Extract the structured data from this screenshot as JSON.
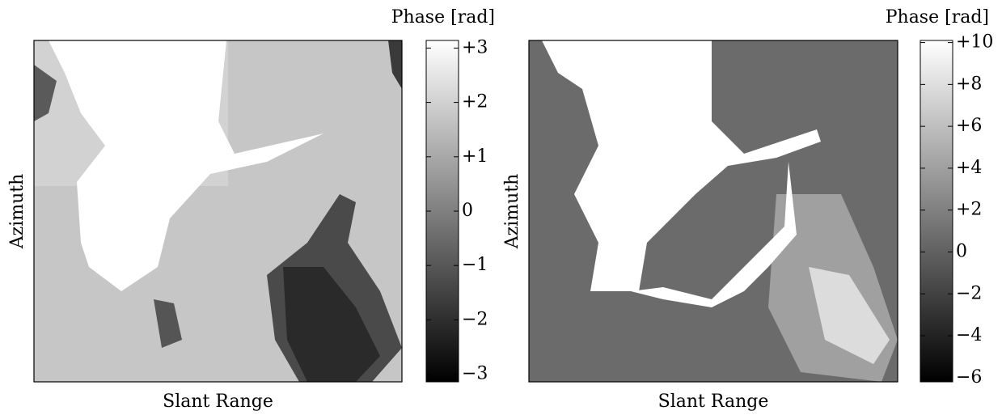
{
  "chart_data": [
    {
      "type": "image",
      "xlabel": "Slant Range",
      "ylabel": "Azimuth",
      "colorbar": {
        "label": "Phase [rad]",
        "lim": [
          -3.14,
          3.14
        ],
        "ticks": [
          {
            "value": 3,
            "label": "+3"
          },
          {
            "value": 2,
            "label": "+2"
          },
          {
            "value": 1,
            "label": "+1"
          },
          0,
          {
            "value": -1,
            "label": "−1"
          },
          {
            "value": -2,
            "label": "−2"
          },
          {
            "value": -3,
            "label": "−3"
          }
        ]
      }
    },
    {
      "type": "image",
      "xlabel": "Slant Range",
      "ylabel": "Azimuth",
      "colorbar": {
        "label": "Phase [rad]",
        "lim": [
          -6.2,
          10.1
        ],
        "ticks": [
          {
            "value": 10,
            "label": "+10"
          },
          {
            "value": 8,
            "label": "+8"
          },
          {
            "value": 6,
            "label": "+6"
          },
          {
            "value": 4,
            "label": "+4"
          },
          {
            "value": 2,
            "label": "+2"
          },
          0,
          {
            "value": -2,
            "label": "−2"
          },
          {
            "value": -4,
            "label": "−4"
          },
          {
            "value": -6,
            "label": "−6"
          }
        ]
      }
    }
  ]
}
